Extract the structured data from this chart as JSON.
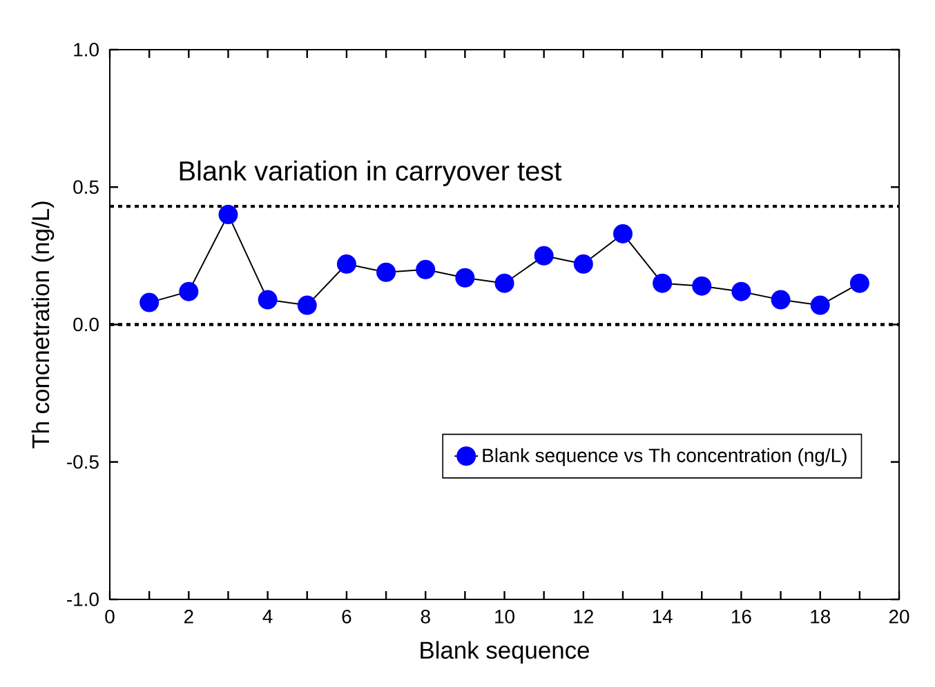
{
  "chart_data": {
    "type": "line",
    "title": "Blank variation in carryover test",
    "xlabel": "Blank sequence",
    "ylabel": "Th concnetration (ng/L)",
    "x": [
      1,
      2,
      3,
      4,
      5,
      6,
      7,
      8,
      9,
      10,
      11,
      12,
      13,
      14,
      15,
      16,
      17,
      18,
      19
    ],
    "series": [
      {
        "name": "Blank sequence vs Th concentration (ng/L)",
        "color": "#0000ff",
        "values": [
          0.08,
          0.12,
          0.4,
          0.09,
          0.07,
          0.22,
          0.19,
          0.2,
          0.17,
          0.15,
          0.25,
          0.22,
          0.33,
          0.15,
          0.14,
          0.12,
          0.09,
          0.07,
          0.15
        ]
      }
    ],
    "xlim": [
      0,
      20
    ],
    "xticks": [
      0,
      2,
      4,
      6,
      8,
      10,
      12,
      14,
      16,
      18,
      20
    ],
    "ylim": [
      -1,
      1
    ],
    "yticks": [
      {
        "value": -1,
        "label": "-1.0"
      },
      {
        "value": -0.5,
        "label": "-0.5"
      },
      {
        "value": 0,
        "label": "0.0"
      },
      {
        "value": 0.5,
        "label": "0.5"
      },
      {
        "value": 1,
        "label": "1.0"
      }
    ],
    "ref_lines": [
      {
        "axis": "y",
        "value": 0.43,
        "line_style": "dotted"
      },
      {
        "axis": "y",
        "value": 0,
        "line_style": "dotted"
      }
    ],
    "legend": "bottom right",
    "marker": "circle",
    "line_style": "solid"
  }
}
